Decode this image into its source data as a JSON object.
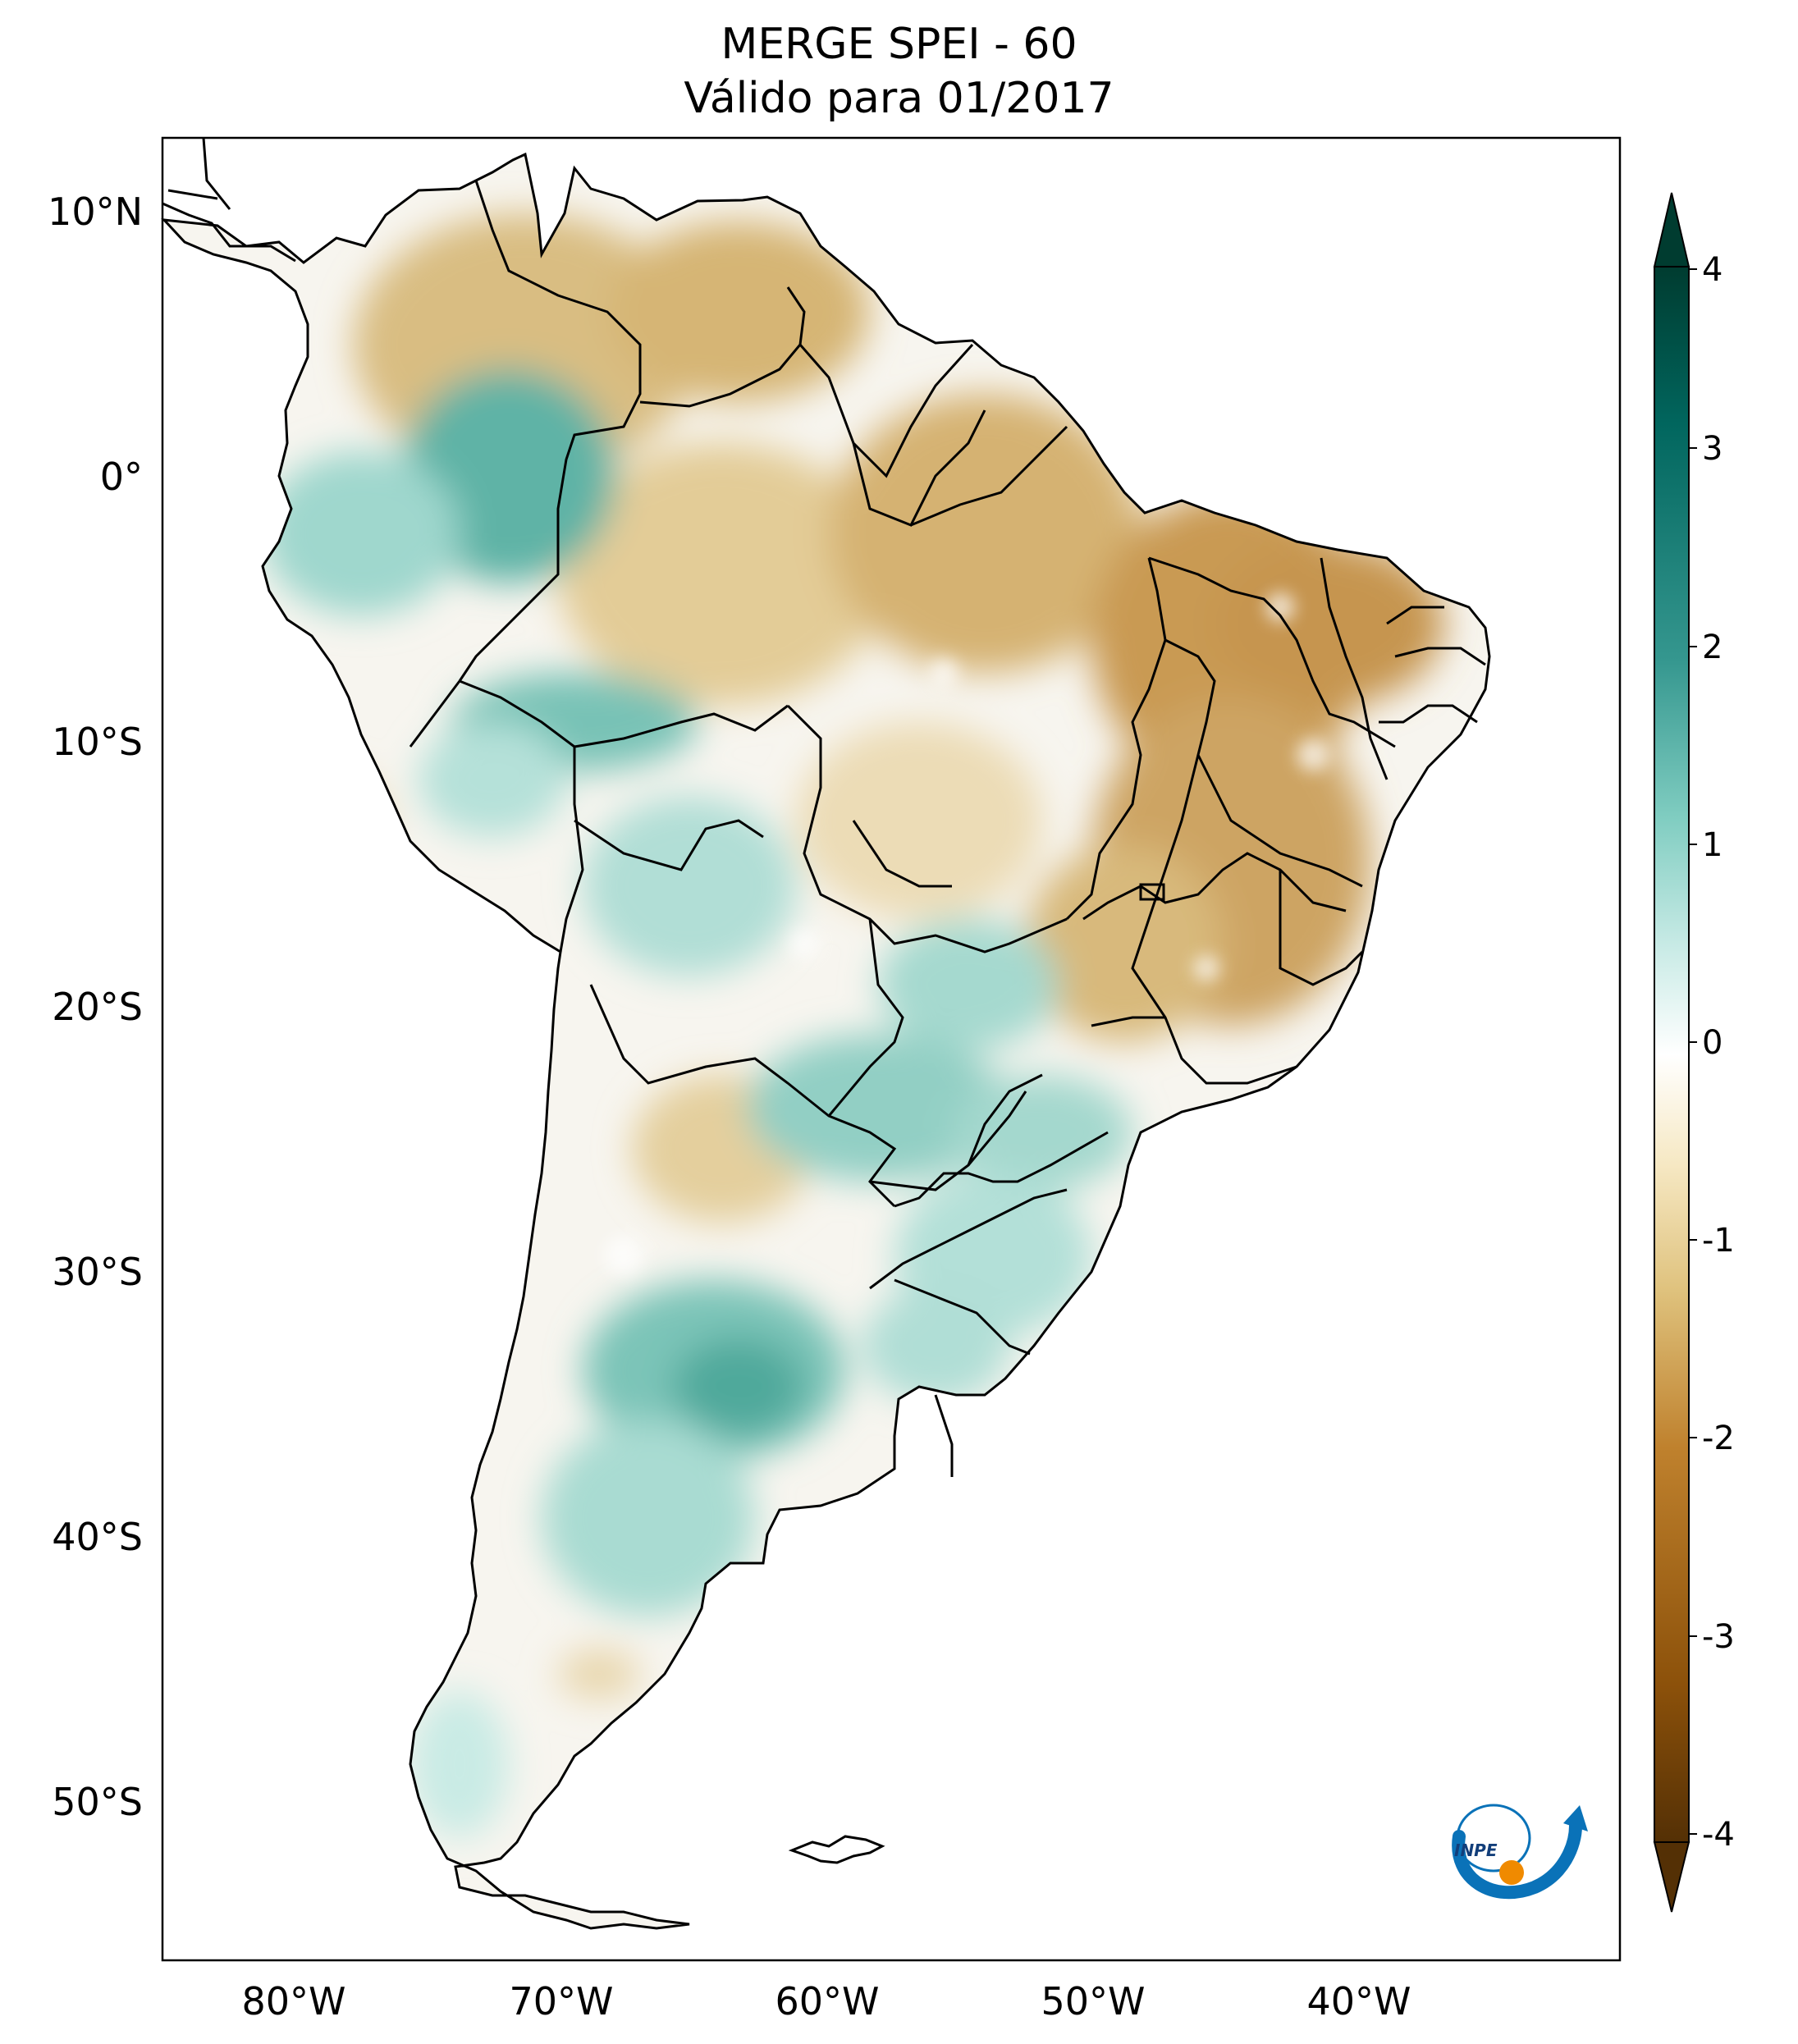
{
  "title": {
    "line1": "MERGE   SPEI - 60",
    "line2": "Válido para 01/2017"
  },
  "map": {
    "lat_labels": [
      "10°N",
      "0°",
      "10°S",
      "20°S",
      "30°S",
      "40°S",
      "50°S"
    ],
    "lon_labels": [
      "80°W",
      "70°W",
      "60°W",
      "50°W",
      "40°W"
    ]
  },
  "colorbar": {
    "ticks": [
      "4",
      "3",
      "2",
      "1",
      "0",
      "-1",
      "-2",
      "-3",
      "-4"
    ],
    "palette": [
      "#543005",
      "#8c510a",
      "#bf812d",
      "#dfc27d",
      "#f6e8c3",
      "#ffffff",
      "#c7eae5",
      "#80cdc1",
      "#35978f",
      "#01665e",
      "#003c30"
    ]
  },
  "logo": {
    "text": "INPE"
  }
}
